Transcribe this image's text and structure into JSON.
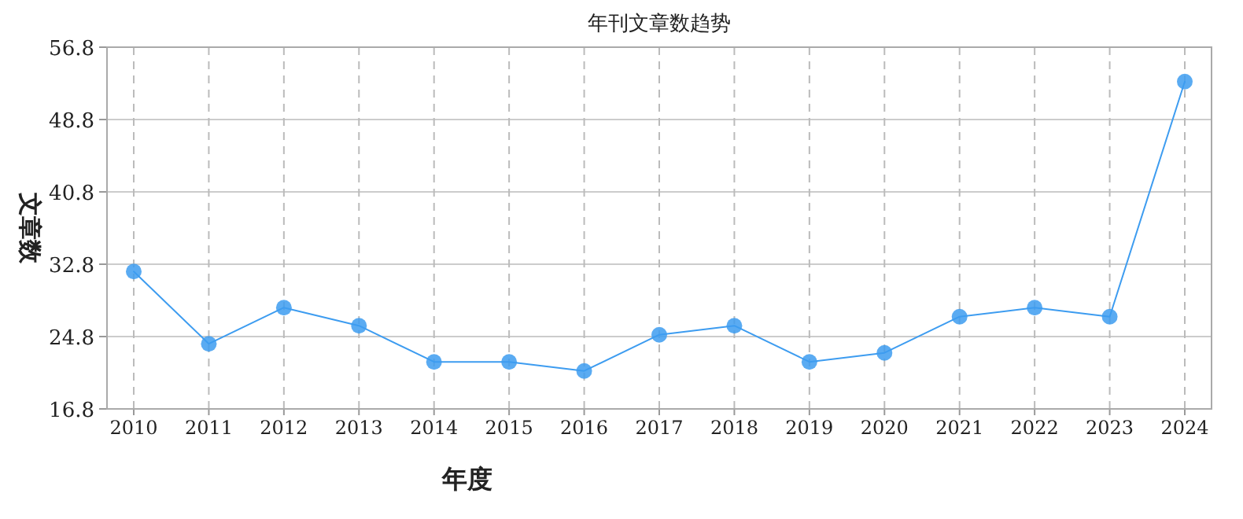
{
  "chart_data": {
    "type": "line",
    "title": "年刊文章数趋势",
    "xlabel": "年度",
    "ylabel": "文章数",
    "categories": [
      "2010",
      "2011",
      "2012",
      "2013",
      "2014",
      "2015",
      "2016",
      "2017",
      "2018",
      "2019",
      "2020",
      "2021",
      "2022",
      "2023",
      "2024"
    ],
    "series": [
      {
        "color": "#3d9cf0",
        "values": [
          32,
          24,
          28,
          26,
          22,
          22,
          21,
          25,
          26,
          22,
          23,
          27,
          28,
          27,
          53
        ]
      }
    ],
    "ylim": [
      16.8,
      56.8
    ],
    "yticks": [
      16.8,
      24.8,
      32.8,
      40.8,
      48.8,
      56.8
    ],
    "grid": true,
    "marker": "circle",
    "line_style": "solid"
  }
}
